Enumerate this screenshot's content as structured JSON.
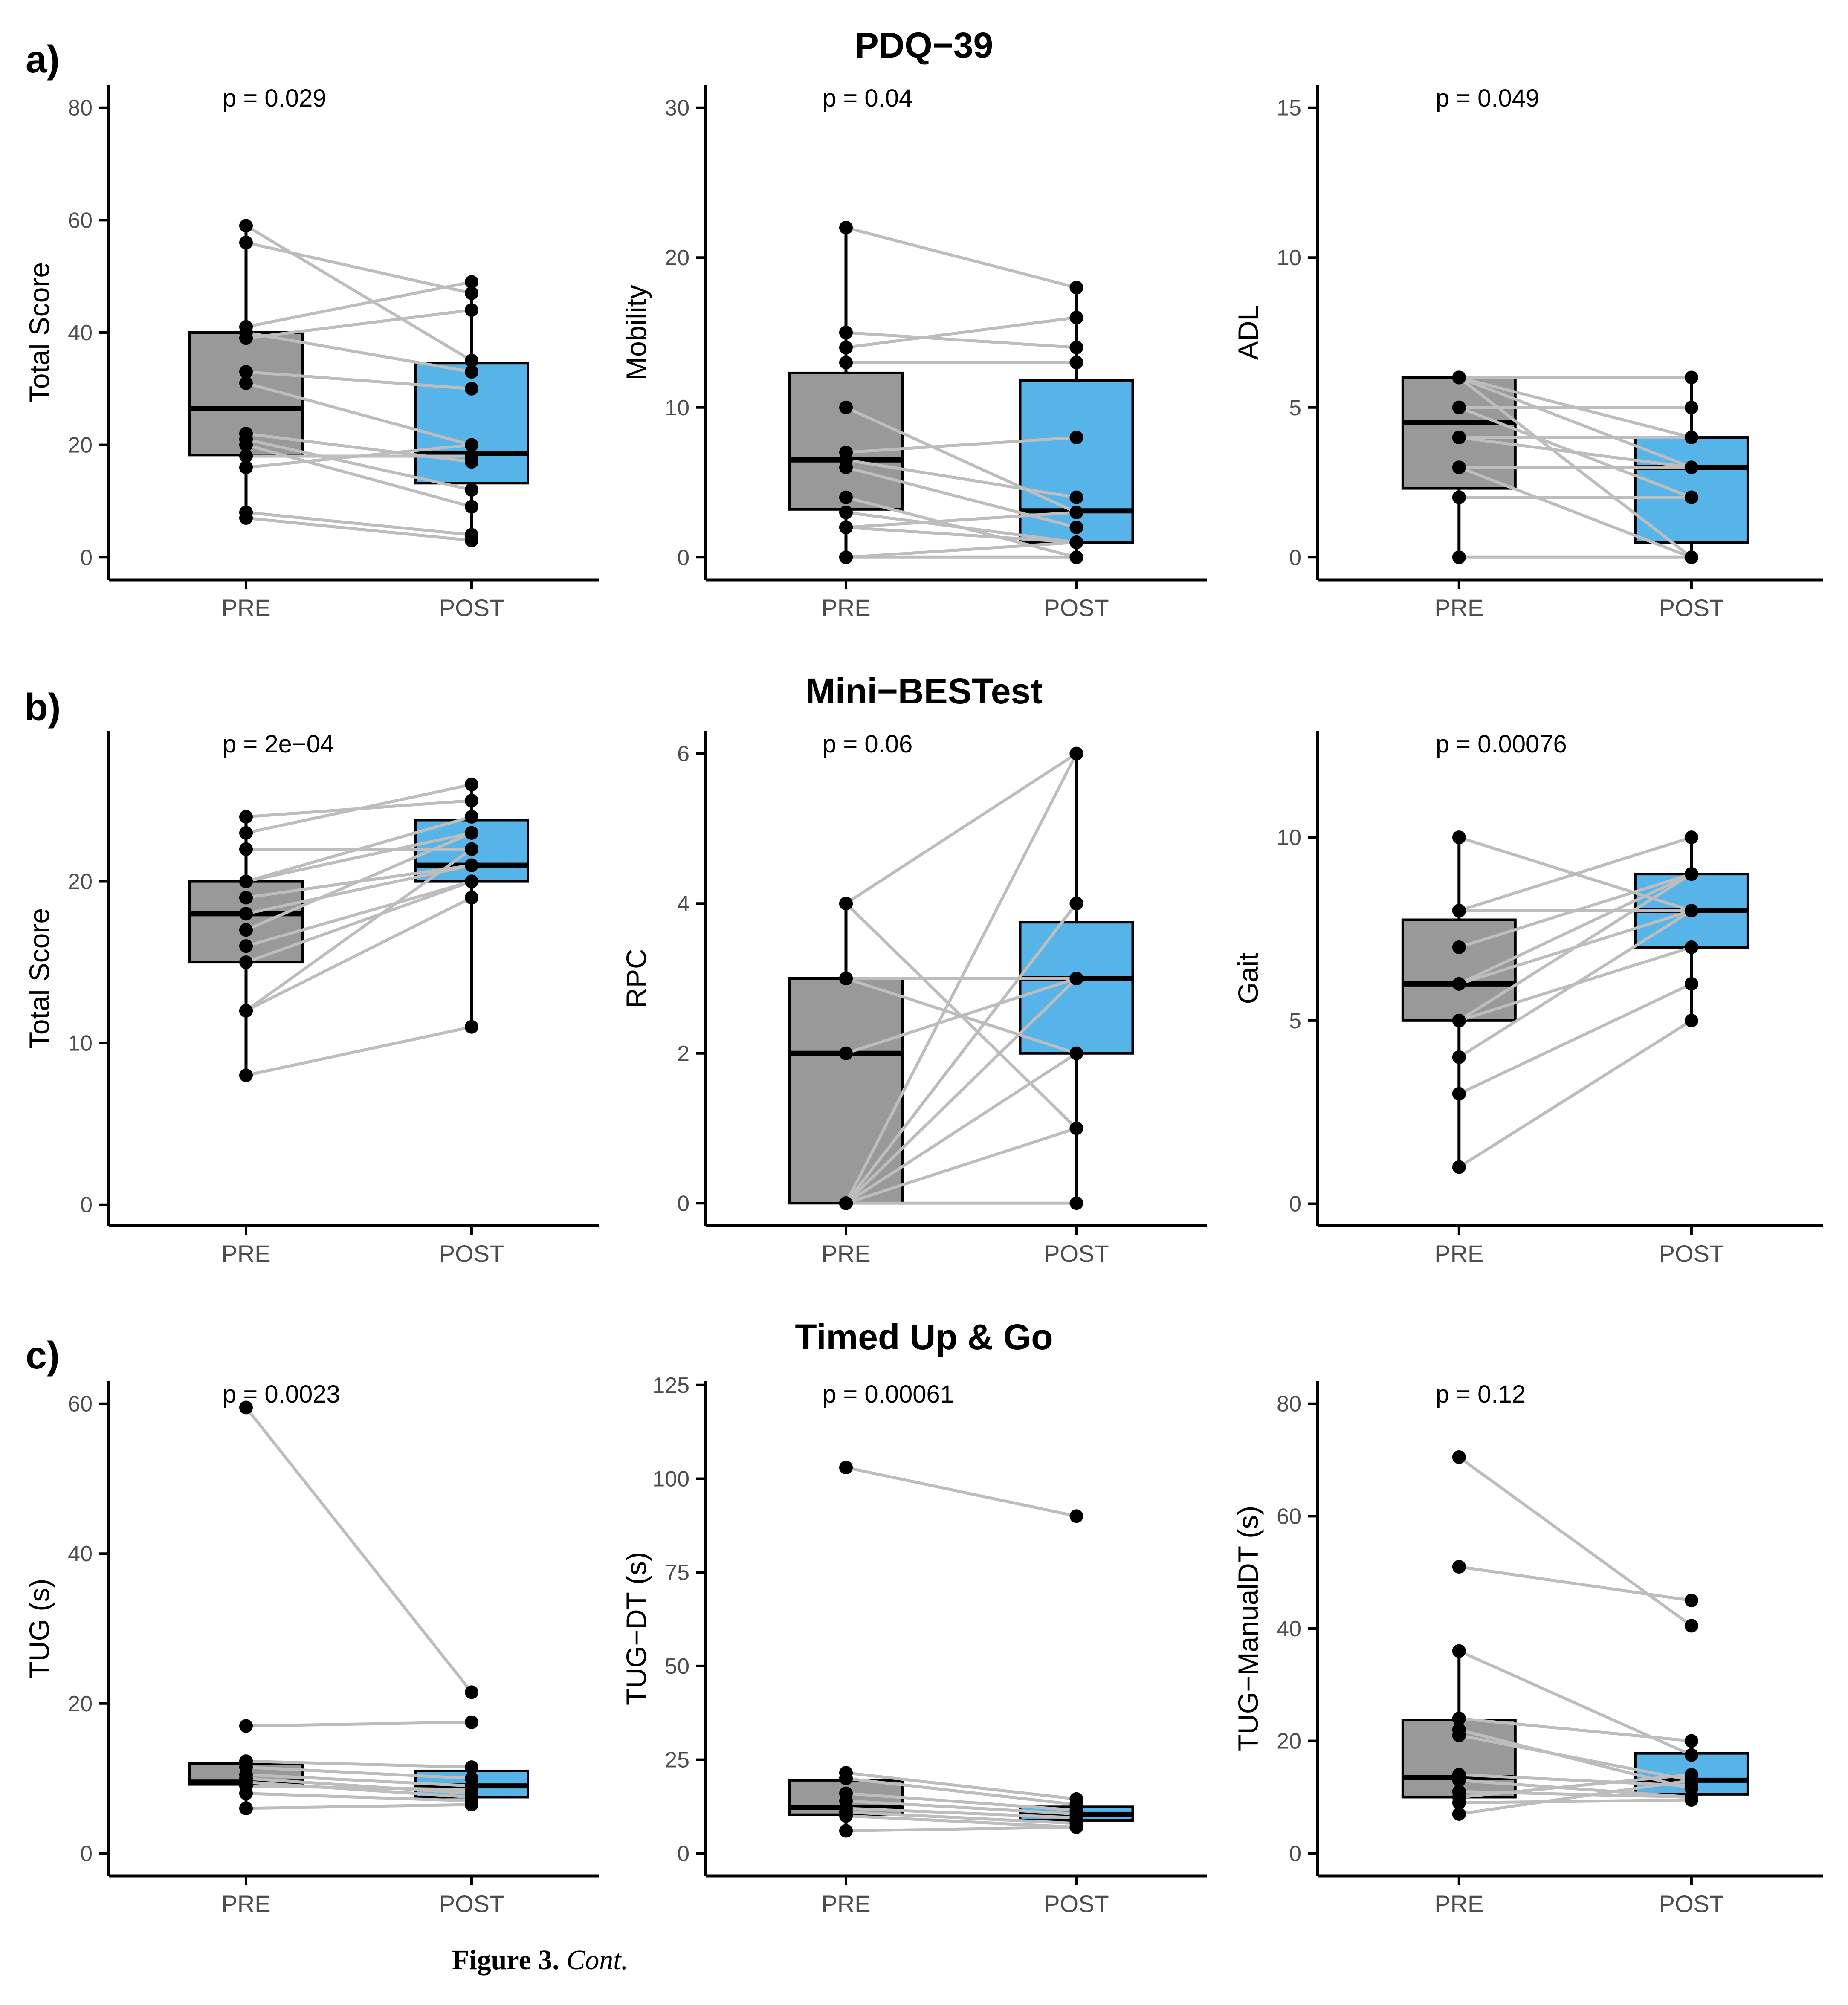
{
  "caption": {
    "label": "Figure 3.",
    "text": "Cont."
  },
  "colors": {
    "pre_box": "#999999",
    "post_box": "#56b4e9",
    "line": "#bdbdbd",
    "point": "#000000"
  },
  "rows": [
    {
      "letter": "a)",
      "title": "PDQ−39"
    },
    {
      "letter": "b)",
      "title": "Mini−BESTest"
    },
    {
      "letter": "c)",
      "title": "Timed Up & Go"
    }
  ],
  "chart_data": [
    {
      "type": "box",
      "row": 0,
      "col": 0,
      "ylabel": "Total Score",
      "p": "p = 0.029",
      "categories": [
        "PRE",
        "POST"
      ],
      "ylim": [
        -4,
        84
      ],
      "ticks": [
        0,
        20,
        40,
        60,
        80
      ],
      "boxes": [
        {
          "q1": 18.2,
          "median": 26.5,
          "q3": 40,
          "min": 7,
          "max": 59
        },
        {
          "q1": 13.2,
          "median": 18.5,
          "q3": 34.6,
          "min": 3,
          "max": 49
        }
      ],
      "pairs": [
        [
          59,
          35
        ],
        [
          56,
          47
        ],
        [
          41,
          49
        ],
        [
          40,
          33
        ],
        [
          39,
          44
        ],
        [
          33,
          30
        ],
        [
          31,
          20
        ],
        [
          22,
          17
        ],
        [
          21,
          12
        ],
        [
          20,
          9
        ],
        [
          18,
          18
        ],
        [
          16,
          20
        ],
        [
          8,
          4
        ],
        [
          7,
          3
        ]
      ]
    },
    {
      "type": "box",
      "row": 0,
      "col": 1,
      "ylabel": "Mobility",
      "p": "p = 0.04",
      "categories": [
        "PRE",
        "POST"
      ],
      "ylim": [
        -1.5,
        31.5
      ],
      "ticks": [
        0,
        10,
        20,
        30
      ],
      "boxes": [
        {
          "q1": 3.2,
          "median": 6.5,
          "q3": 12.3,
          "min": 0,
          "max": 22
        },
        {
          "q1": 1,
          "median": 3.1,
          "q3": 11.8,
          "min": 0,
          "max": 18
        }
      ],
      "pairs": [
        [
          22,
          18
        ],
        [
          15,
          14
        ],
        [
          14,
          16
        ],
        [
          13,
          13
        ],
        [
          10,
          3
        ],
        [
          7,
          8
        ],
        [
          6.5,
          4
        ],
        [
          6,
          2
        ],
        [
          4,
          0
        ],
        [
          3,
          1
        ],
        [
          2,
          1
        ],
        [
          2,
          3
        ],
        [
          0,
          0
        ],
        [
          0,
          1
        ]
      ]
    },
    {
      "type": "box",
      "row": 0,
      "col": 2,
      "ylabel": "ADL",
      "p": "p = 0.049",
      "categories": [
        "PRE",
        "POST"
      ],
      "ylim": [
        -0.75,
        15.75
      ],
      "ticks": [
        0,
        5,
        10,
        15
      ],
      "boxes": [
        {
          "q1": 2.3,
          "median": 4.5,
          "q3": 6,
          "min": 0,
          "max": 6
        },
        {
          "q1": 0.5,
          "median": 3,
          "q3": 4,
          "min": 0,
          "max": 6
        }
      ],
      "pairs": [
        [
          6,
          6
        ],
        [
          6,
          4
        ],
        [
          6,
          3
        ],
        [
          6,
          0
        ],
        [
          5,
          5
        ],
        [
          5,
          2
        ],
        [
          4,
          4
        ],
        [
          4,
          3
        ],
        [
          3,
          3
        ],
        [
          3,
          0
        ],
        [
          2,
          2
        ],
        [
          2,
          2
        ],
        [
          0,
          0
        ]
      ]
    },
    {
      "type": "box",
      "row": 1,
      "col": 0,
      "ylabel": "Total Score",
      "p": "p = 2e−04",
      "categories": [
        "PRE",
        "POST"
      ],
      "ylim": [
        -1.3,
        29.3
      ],
      "ticks": [
        0,
        10,
        20
      ],
      "boxes": [
        {
          "q1": 15,
          "median": 18,
          "q3": 20,
          "min": 8,
          "max": 24
        },
        {
          "q1": 20,
          "median": 21,
          "q3": 23.8,
          "min": 11,
          "max": 26
        }
      ],
      "pairs": [
        [
          24,
          25
        ],
        [
          23,
          26
        ],
        [
          22,
          22
        ],
        [
          20,
          24
        ],
        [
          20,
          23
        ],
        [
          19,
          21
        ],
        [
          18,
          21
        ],
        [
          17,
          23
        ],
        [
          16,
          20
        ],
        [
          15,
          20
        ],
        [
          12,
          22
        ],
        [
          12,
          19
        ],
        [
          8,
          11
        ]
      ]
    },
    {
      "type": "box",
      "row": 1,
      "col": 1,
      "ylabel": "RPC",
      "p": "p = 0.06",
      "categories": [
        "PRE",
        "POST"
      ],
      "ylim": [
        -0.3,
        6.3
      ],
      "ticks": [
        0,
        2,
        4,
        6
      ],
      "boxes": [
        {
          "q1": 0,
          "median": 2,
          "q3": 3,
          "min": 0,
          "max": 4
        },
        {
          "q1": 2,
          "median": 3,
          "q3": 3.75,
          "min": 0,
          "max": 6
        }
      ],
      "pairs": [
        [
          4,
          6
        ],
        [
          4,
          1
        ],
        [
          3,
          3
        ],
        [
          3,
          2
        ],
        [
          2,
          3
        ],
        [
          0,
          6
        ],
        [
          0,
          4
        ],
        [
          0,
          4
        ],
        [
          0,
          3
        ],
        [
          0,
          2
        ],
        [
          0,
          0
        ],
        [
          0,
          1
        ]
      ]
    },
    {
      "type": "box",
      "row": 1,
      "col": 2,
      "ylabel": "Gait",
      "p": "p = 0.00076",
      "categories": [
        "PRE",
        "POST"
      ],
      "ylim": [
        -0.6,
        12.9
      ],
      "ticks": [
        0,
        5,
        10
      ],
      "boxes": [
        {
          "q1": 5,
          "median": 6,
          "q3": 7.75,
          "min": 1,
          "max": 10
        },
        {
          "q1": 7,
          "median": 8,
          "q3": 9,
          "min": 5,
          "max": 10
        }
      ],
      "pairs": [
        [
          10,
          8
        ],
        [
          8,
          10
        ],
        [
          8,
          8
        ],
        [
          7,
          9
        ],
        [
          6,
          9
        ],
        [
          6,
          8
        ],
        [
          5,
          7
        ],
        [
          5,
          9
        ],
        [
          4,
          8
        ],
        [
          3,
          6
        ],
        [
          1,
          5
        ]
      ]
    },
    {
      "type": "box",
      "row": 2,
      "col": 0,
      "ylabel": "TUG (s)",
      "p": "p = 0.0023",
      "categories": [
        "PRE",
        "POST"
      ],
      "ylim": [
        -3,
        63
      ],
      "ticks": [
        0,
        20,
        40,
        60
      ],
      "boxes": [
        {
          "q1": 9.2,
          "median": 9.5,
          "q3": 12,
          "min": 6,
          "max": 12.3
        },
        {
          "q1": 7.5,
          "median": 9,
          "q3": 11,
          "min": 6.5,
          "max": 12
        }
      ],
      "pairs": [
        [
          59.5,
          21.5
        ],
        [
          17,
          17.5
        ],
        [
          12.3,
          11.5
        ],
        [
          11.5,
          10
        ],
        [
          10.5,
          9
        ],
        [
          10,
          8
        ],
        [
          9.5,
          7.5
        ],
        [
          9,
          8.5
        ],
        [
          8,
          7
        ],
        [
          6,
          6.5
        ]
      ]
    },
    {
      "type": "box",
      "row": 2,
      "col": 1,
      "ylabel": "TUG−DT (s)",
      "p": "p = 0.00061",
      "categories": [
        "PRE",
        "POST"
      ],
      "ylim": [
        -6,
        126
      ],
      "ticks": [
        0,
        25,
        50,
        75,
        100,
        125
      ],
      "boxes": [
        {
          "q1": 10.3,
          "median": 12.2,
          "q3": 19.5,
          "min": 6,
          "max": 22
        },
        {
          "q1": 8.8,
          "median": 10.4,
          "q3": 12.4,
          "min": 7,
          "max": 14.5
        }
      ],
      "pairs": [
        [
          103,
          90
        ],
        [
          21.5,
          14.5
        ],
        [
          20,
          13
        ],
        [
          16,
          11.5
        ],
        [
          14,
          10.5
        ],
        [
          12,
          9.5
        ],
        [
          11,
          8
        ],
        [
          10,
          7
        ],
        [
          6,
          7
        ]
      ]
    },
    {
      "type": "box",
      "row": 2,
      "col": 2,
      "ylabel": "TUG−ManualDT (s)",
      "p": "p = 0.12",
      "categories": [
        "PRE",
        "POST"
      ],
      "ylim": [
        -4,
        84
      ],
      "ticks": [
        0,
        20,
        40,
        60,
        80
      ],
      "boxes": [
        {
          "q1": 10,
          "median": 13.5,
          "q3": 23.7,
          "min": 7,
          "max": 36
        },
        {
          "q1": 10.5,
          "median": 13,
          "q3": 17.8,
          "min": 9.5,
          "max": 20
        }
      ],
      "pairs": [
        [
          70.5,
          40.5
        ],
        [
          51,
          45
        ],
        [
          36,
          17.5
        ],
        [
          24,
          20
        ],
        [
          22,
          11.5
        ],
        [
          21,
          13
        ],
        [
          14,
          12
        ],
        [
          13,
          10
        ],
        [
          11,
          10
        ],
        [
          10,
          14
        ],
        [
          9,
          9.5
        ],
        [
          7,
          13
        ]
      ]
    }
  ]
}
